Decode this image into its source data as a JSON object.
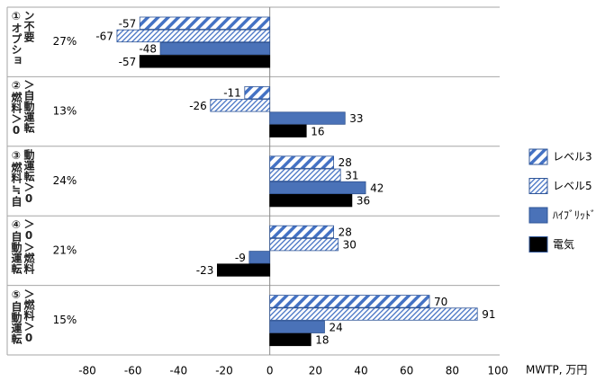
{
  "chart_data": {
    "type": "hbar",
    "categories": [
      "①オプション不要",
      "②燃料＞0＞自動運転",
      "③燃料≒自動運転＞0",
      "④自動運転＞0＞燃料",
      "⑤自動運転＞燃料＞0"
    ],
    "shares": [
      "27%",
      "13%",
      "24%",
      "21%",
      "15%"
    ],
    "series": [
      {
        "name": "レベル3",
        "color": "#4472c4",
        "fill_style": "hatch",
        "values": [
          -57,
          -11,
          28,
          28,
          70
        ]
      },
      {
        "name": "レベル5",
        "color": "#4472c4",
        "fill_style": "hatch-fine",
        "values": [
          -67,
          -26,
          31,
          30,
          91
        ]
      },
      {
        "name": "ﾊｲﾌﾞﾘｯﾄﾞ",
        "color": "#4a72b8",
        "fill_style": "solid",
        "values": [
          -48,
          33,
          42,
          -9,
          24
        ]
      },
      {
        "name": "電気",
        "color": "#000000",
        "fill_style": "solid",
        "values": [
          -57,
          16,
          36,
          -23,
          18
        ]
      }
    ],
    "xlabel": "MWTP, 万円",
    "xlim": [
      -80,
      100
    ],
    "xticks": [
      -80,
      -60,
      -40,
      -20,
      0,
      20,
      40,
      60,
      80,
      100
    ]
  }
}
